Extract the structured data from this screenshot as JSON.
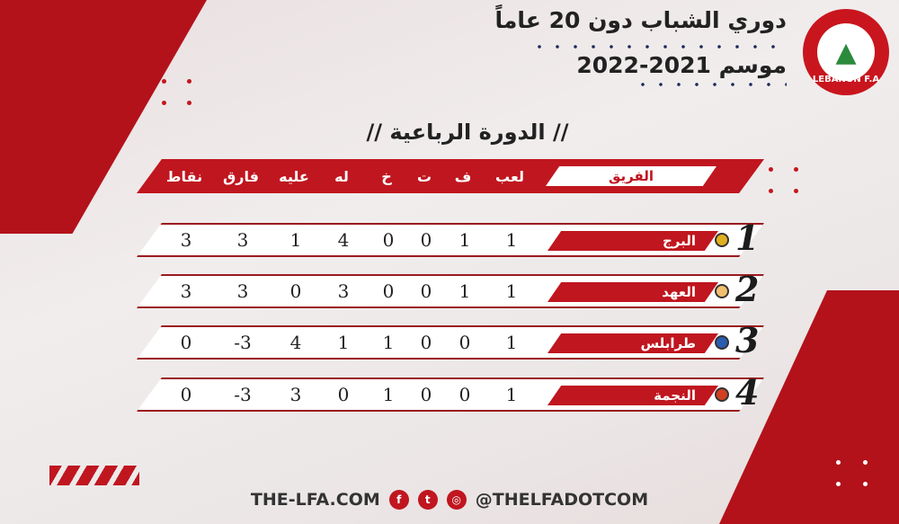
{
  "header": {
    "title": "دوري الشباب دون 20 عاماً",
    "season": "موسم 2021-2022",
    "logo_text": "LEBANON F.A"
  },
  "subtitle": "// الدورة الرباعية //",
  "table": {
    "columns": {
      "team": "الفريق",
      "played": "لعب",
      "won": "ف",
      "drawn": "ت",
      "lost": "خ",
      "for": "له",
      "against": "عليه",
      "diff": "فارق",
      "points": "نقاط"
    },
    "rows": [
      {
        "rank": "1",
        "team": "البرج",
        "played": "1",
        "won": "1",
        "drawn": "0",
        "lost": "0",
        "for": "4",
        "against": "1",
        "diff": "3",
        "points": "3",
        "badge_color": "#e0b020"
      },
      {
        "rank": "2",
        "team": "العهد",
        "played": "1",
        "won": "1",
        "drawn": "0",
        "lost": "0",
        "for": "3",
        "against": "0",
        "diff": "3",
        "points": "3",
        "badge_color": "#f0c070"
      },
      {
        "rank": "3",
        "team": "طرابلس",
        "played": "1",
        "won": "0",
        "drawn": "0",
        "lost": "1",
        "for": "1",
        "against": "4",
        "diff": "-3",
        "points": "0",
        "badge_color": "#2a5db0"
      },
      {
        "rank": "4",
        "team": "النجمة",
        "played": "1",
        "won": "0",
        "drawn": "0",
        "lost": "1",
        "for": "0",
        "against": "3",
        "diff": "-3",
        "points": "0",
        "badge_color": "#d04020"
      }
    ]
  },
  "footer": {
    "website": "THE-LFA.COM",
    "handle": "@THELFADOTCOM",
    "icons": [
      "facebook-icon",
      "twitter-icon",
      "instagram-icon"
    ]
  },
  "colors": {
    "accent": "#c0161f"
  }
}
